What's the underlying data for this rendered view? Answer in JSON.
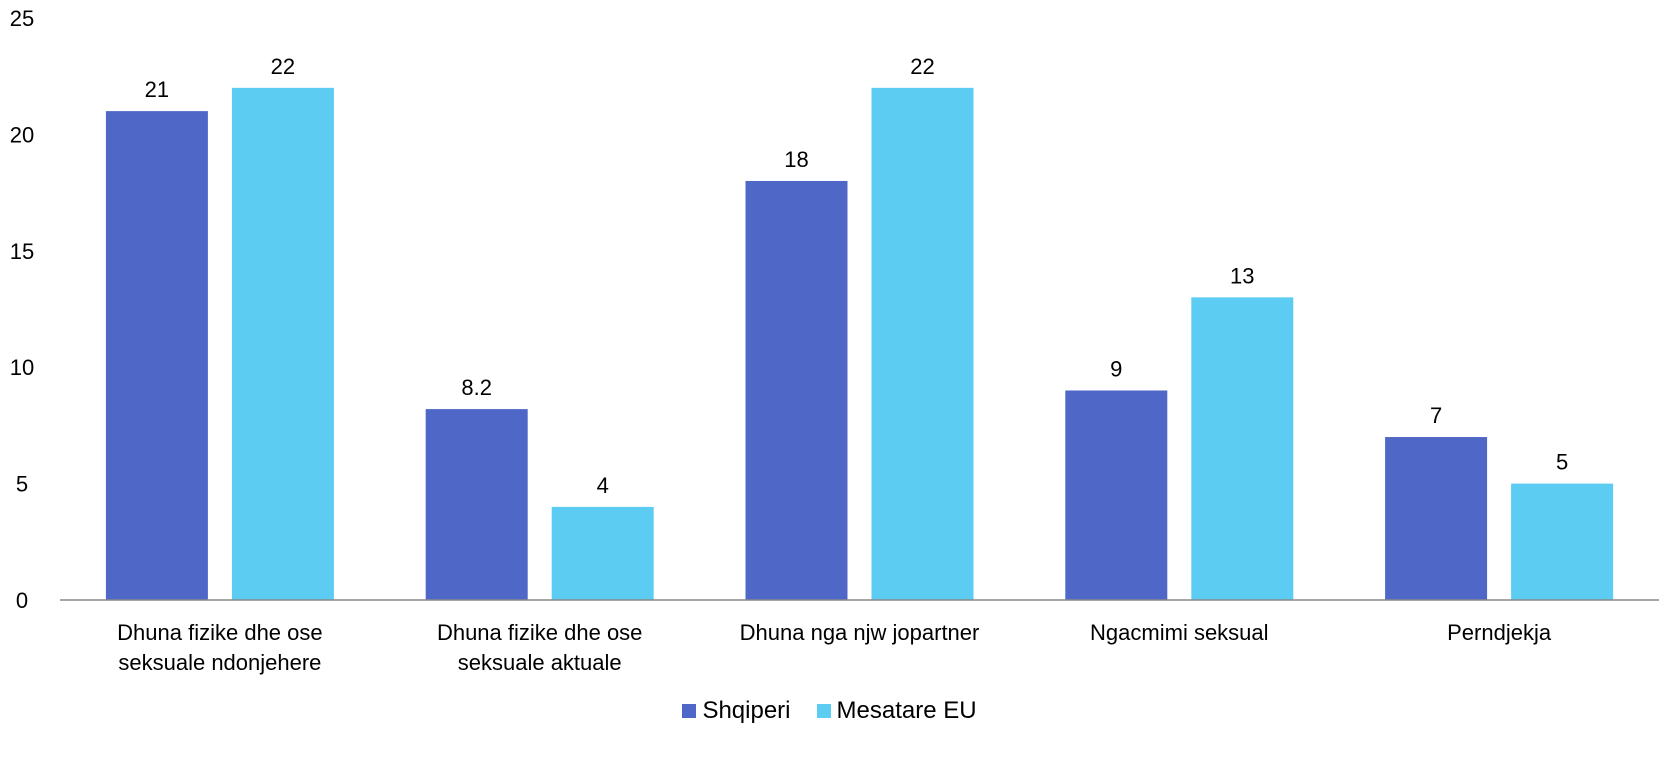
{
  "chart_data": {
    "type": "bar",
    "categories": [
      [
        "Dhuna fizike dhe ose",
        "seksuale ndonjehere"
      ],
      [
        "Dhuna fizike dhe ose",
        "seksuale aktuale"
      ],
      [
        "Dhuna nga njw jopartner"
      ],
      [
        "Ngacmimi seksual"
      ],
      [
        "Perndjekja"
      ]
    ],
    "series": [
      {
        "name": "Shqiperi",
        "color": "#4F67C6",
        "values": [
          21,
          8.2,
          18,
          9,
          7
        ],
        "labels": [
          "21",
          "8.2",
          "18",
          "9",
          "7"
        ]
      },
      {
        "name": "Mesatare EU",
        "color": "#5DCCF2",
        "values": [
          22,
          4,
          22,
          13,
          5
        ],
        "labels": [
          "22",
          "4",
          "22",
          "13",
          "5"
        ]
      }
    ],
    "ylim": [
      0,
      25
    ],
    "yticks": [
      0,
      5,
      10,
      15,
      20,
      25
    ],
    "grid": false,
    "legend_position": "bottom-center",
    "title": "",
    "xlabel": "",
    "ylabel": ""
  }
}
